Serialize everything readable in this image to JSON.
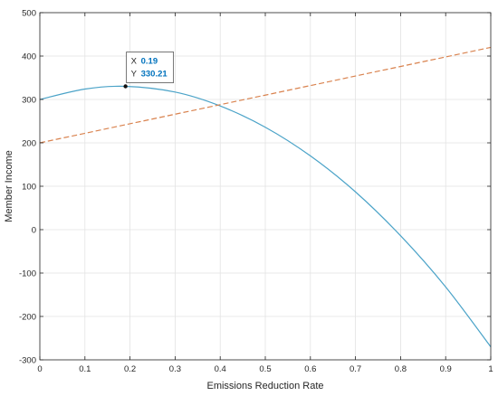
{
  "chart_data": {
    "type": "line",
    "xlabel": "Emissions Reduction Rate",
    "ylabel": "Member Income",
    "xlim": [
      0,
      1
    ],
    "ylim": [
      -300,
      500
    ],
    "x_ticks": [
      "0",
      "0.1",
      "0.2",
      "0.3",
      "0.4",
      "0.5",
      "0.6",
      "0.7",
      "0.8",
      "0.9",
      "1"
    ],
    "y_ticks": [
      "-300",
      "-200",
      "-100",
      "0",
      "100",
      "200",
      "300",
      "400",
      "500"
    ],
    "grid": true,
    "series": [
      {
        "style": "solid",
        "color": "#4ba3c8",
        "x": [
          0,
          0.1,
          0.19,
          0.3,
          0.4,
          0.5,
          0.6,
          0.7,
          0.8,
          0.9,
          1.0
        ],
        "y": [
          300,
          324,
          330.21,
          317,
          285,
          236,
          170,
          87,
          -14,
          -132,
          -270
        ]
      },
      {
        "style": "dashed",
        "color": "#d9824e",
        "x": [
          0,
          1
        ],
        "y": [
          200,
          420
        ]
      }
    ],
    "datatip": {
      "x_label": "X",
      "x_value": "0.19",
      "y_label": "Y",
      "y_value": "330.21",
      "x": 0.19,
      "y": 330.21
    }
  }
}
